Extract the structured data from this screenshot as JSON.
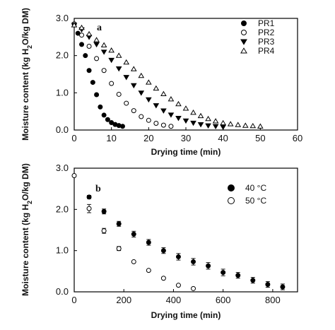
{
  "chart_data": [
    {
      "type": "scatter",
      "panel_label": "a",
      "xlabel": "Drying time (min)",
      "ylabel": "Moisture content (kg H2O/kg DM)",
      "xlim": [
        0,
        60
      ],
      "ylim": [
        0,
        3.0
      ],
      "xticks": [
        0,
        10,
        20,
        30,
        40,
        50,
        60
      ],
      "yticks": [
        0.0,
        1.0,
        2.0,
        3.0
      ],
      "legend_position": "top-right",
      "series": [
        {
          "name": "PR1",
          "marker": "circle-filled",
          "x": [
            0,
            1,
            2,
            3,
            4,
            5,
            6,
            7,
            8,
            9,
            10,
            11,
            12,
            13
          ],
          "y": [
            2.85,
            2.6,
            2.3,
            2.0,
            1.6,
            1.28,
            0.95,
            0.62,
            0.4,
            0.28,
            0.2,
            0.15,
            0.12,
            0.1
          ]
        },
        {
          "name": "PR2",
          "marker": "circle-open",
          "x": [
            0,
            2,
            4,
            6,
            8,
            10,
            12,
            14,
            16,
            18,
            20,
            22,
            24,
            26
          ],
          "y": [
            2.85,
            2.55,
            2.25,
            1.92,
            1.6,
            1.25,
            0.96,
            0.72,
            0.52,
            0.36,
            0.26,
            0.18,
            0.13,
            0.1
          ]
        },
        {
          "name": "PR3",
          "marker": "triangle-down-filled",
          "x": [
            0,
            2,
            4,
            6,
            8,
            10,
            12,
            14,
            16,
            18,
            20,
            22,
            24,
            26,
            28,
            30,
            32,
            34,
            36,
            38,
            40
          ],
          "y": [
            2.82,
            2.7,
            2.5,
            2.3,
            2.1,
            1.88,
            1.65,
            1.42,
            1.2,
            1.0,
            0.82,
            0.66,
            0.52,
            0.41,
            0.32,
            0.25,
            0.19,
            0.15,
            0.12,
            0.1,
            0.08
          ]
        },
        {
          "name": "PR4",
          "marker": "triangle-up-open",
          "x": [
            0,
            2,
            4,
            6,
            8,
            10,
            12,
            14,
            16,
            18,
            20,
            22,
            24,
            26,
            28,
            30,
            32,
            34,
            36,
            38,
            40,
            42,
            44,
            46,
            48,
            50
          ],
          "y": [
            2.82,
            2.75,
            2.58,
            2.42,
            2.28,
            2.14,
            2.0,
            1.82,
            1.64,
            1.46,
            1.28,
            1.12,
            0.97,
            0.83,
            0.7,
            0.58,
            0.47,
            0.38,
            0.3,
            0.24,
            0.19,
            0.16,
            0.14,
            0.12,
            0.11,
            0.1
          ]
        }
      ]
    },
    {
      "type": "scatter",
      "panel_label": "b",
      "xlabel": "Drying time (min)",
      "ylabel": "Moisture content (kg H2O/kg DM)",
      "xlim": [
        0,
        900
      ],
      "ylim": [
        0,
        3.0
      ],
      "xticks": [
        0,
        200,
        400,
        600,
        800
      ],
      "yticks": [
        0.0,
        1.0,
        2.0,
        3.0
      ],
      "legend_position": "top-right",
      "series": [
        {
          "name": "40 °C",
          "marker": "circle-filled",
          "x": [
            60,
            120,
            180,
            240,
            300,
            360,
            420,
            480,
            540,
            600,
            660,
            720,
            780,
            840
          ],
          "y": [
            2.3,
            1.95,
            1.65,
            1.4,
            1.2,
            1.0,
            0.85,
            0.73,
            0.63,
            0.47,
            0.4,
            0.28,
            0.18,
            0.12
          ],
          "err": [
            0.04,
            0.06,
            0.06,
            0.07,
            0.07,
            0.07,
            0.08,
            0.08,
            0.08,
            0.08,
            0.07,
            0.07,
            0.07,
            0.07
          ]
        },
        {
          "name": "50 °C",
          "marker": "circle-open",
          "x": [
            0,
            60,
            120,
            180,
            240,
            300,
            360,
            420,
            480
          ],
          "y": [
            2.82,
            2.02,
            1.48,
            1.05,
            0.73,
            0.52,
            0.33,
            0.16,
            0.08
          ],
          "err": [
            0.0,
            0.1,
            0.06,
            0.05,
            0.0,
            0.0,
            0.0,
            0.0,
            0.0
          ]
        }
      ]
    }
  ]
}
